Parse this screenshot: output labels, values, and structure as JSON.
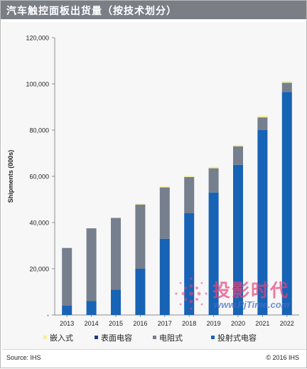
{
  "header": {
    "title": "汽车触控面板出货量（按技术划分）"
  },
  "footer": {
    "source": "Source: IHS",
    "copyright": "© 2016 IHS"
  },
  "watermark": {
    "text": "投影时代",
    "url": "www.PjTime.com"
  },
  "colors": {
    "header_bg": "#7a7f86",
    "embedded": "#f2f0a0",
    "surface_capacitive": "#1f3a7a",
    "resistive": "#767f8d",
    "projected_capacitive": "#1763b6"
  },
  "chart_data": {
    "type": "bar",
    "stacked": true,
    "ylabel": "Shipments (000s)",
    "ylim": [
      0,
      120000
    ],
    "yticks": [
      0,
      20000,
      40000,
      60000,
      80000,
      100000,
      120000
    ],
    "ytick_labels": [
      "-",
      "20,000",
      "40,000",
      "60,000",
      "80,000",
      "100,000",
      "120,000"
    ],
    "categories": [
      "2013",
      "2014",
      "2015",
      "2016",
      "2017",
      "2018",
      "2019",
      "2020",
      "2021",
      "2022"
    ],
    "legend_position": "bottom",
    "grid": false,
    "series": [
      {
        "name": "投射式电容",
        "color": "#1763b6",
        "values": [
          4000,
          6000,
          11000,
          20000,
          33000,
          44000,
          53000,
          65000,
          80000,
          96500
        ]
      },
      {
        "name": "电阻式",
        "color": "#767f8d",
        "values": [
          25000,
          31500,
          31000,
          27800,
          22200,
          15700,
          10500,
          8000,
          5500,
          4000
        ]
      },
      {
        "name": "表面电容",
        "color": "#1f3a7a",
        "values": [
          0,
          0,
          0,
          0,
          0,
          0,
          0,
          0,
          0,
          0
        ]
      },
      {
        "name": "嵌入式",
        "color": "#f2f0a0",
        "values": [
          0,
          0,
          0,
          300,
          500,
          500,
          600,
          600,
          700,
          700
        ]
      }
    ],
    "legend_order": [
      "嵌入式",
      "表面电容",
      "电阻式",
      "投射式电容"
    ]
  }
}
